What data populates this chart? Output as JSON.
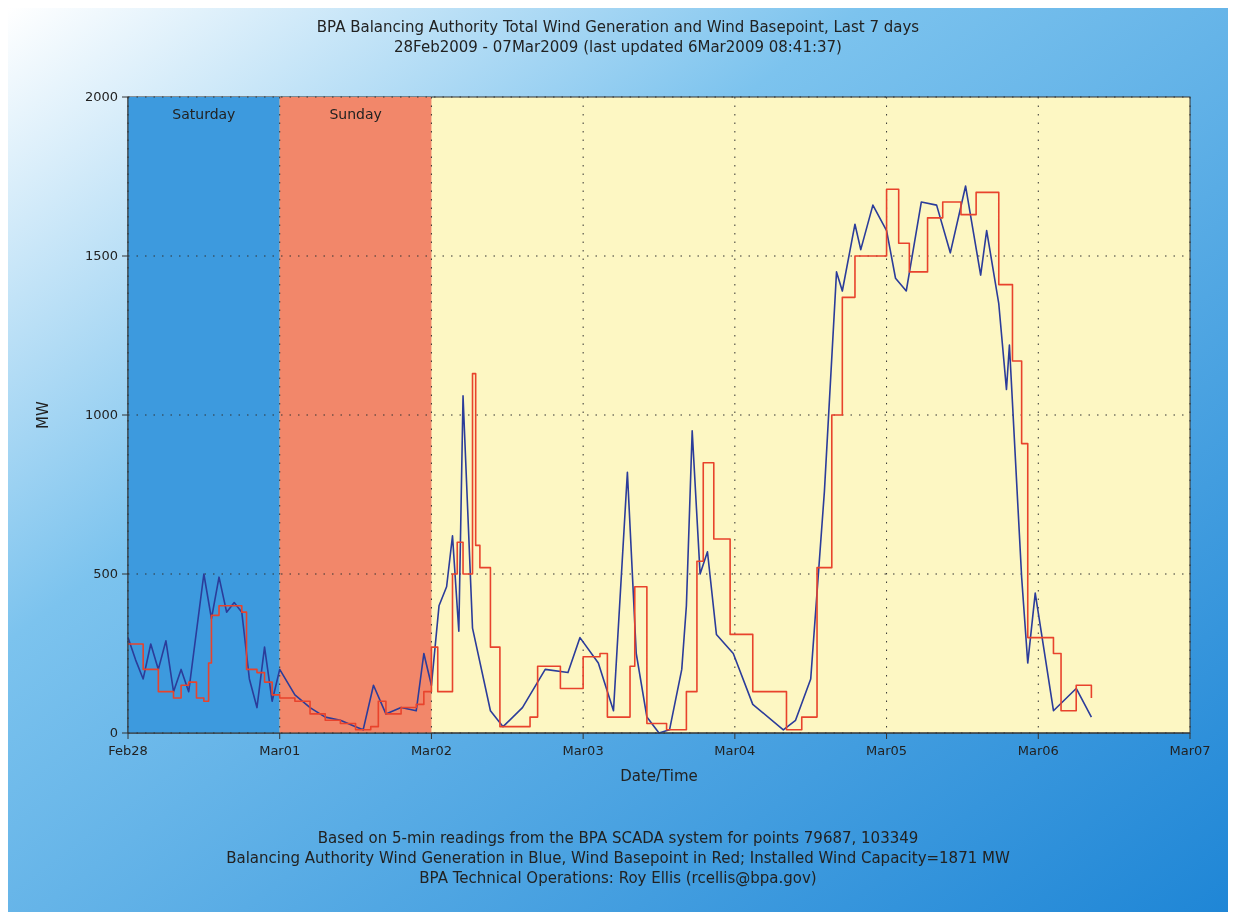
{
  "chart_data": {
    "type": "line",
    "title": "BPA Balancing Authority Total Wind Generation and Wind Basepoint, Last 7 days",
    "subtitle": "28Feb2009 - 07Mar2009 (last updated 6Mar2009 08:41:37)",
    "xlabel": "Date/Time",
    "ylabel": "MW",
    "xlim": [
      "2009-02-28",
      "2009-03-07"
    ],
    "xticks": [
      {
        "value": "2009-02-28",
        "label": "Feb28"
      },
      {
        "value": "2009-03-01",
        "label": "Mar01"
      },
      {
        "value": "2009-03-02",
        "label": "Mar02"
      },
      {
        "value": "2009-03-03",
        "label": "Mar03"
      },
      {
        "value": "2009-03-04",
        "label": "Mar04"
      },
      {
        "value": "2009-03-05",
        "label": "Mar05"
      },
      {
        "value": "2009-03-06",
        "label": "Mar06"
      },
      {
        "value": "2009-03-07",
        "label": "Mar07"
      }
    ],
    "ylim": [
      0,
      2000
    ],
    "yticks": [
      0,
      500,
      1000,
      1500,
      2000
    ],
    "grid": true,
    "line_style": "solid",
    "bands": [
      {
        "axis": "x",
        "from": "2009-02-28",
        "to": "2009-03-01",
        "label": "Saturday",
        "color": "#3d9ade"
      },
      {
        "axis": "x",
        "from": "2009-03-01",
        "to": "2009-03-02",
        "label": "Sunday",
        "color": "#f2876a"
      }
    ],
    "series": [
      {
        "type": "line",
        "color": "#2b3c9a",
        "x": [
          "2009-02-28T00:00",
          "2009-02-28T01:12",
          "2009-02-28T02:24",
          "2009-02-28T03:36",
          "2009-02-28T04:48",
          "2009-02-28T06:00",
          "2009-02-28T07:12",
          "2009-02-28T08:24",
          "2009-02-28T09:36",
          "2009-02-28T12:00",
          "2009-02-28T13:12",
          "2009-02-28T14:24",
          "2009-02-28T15:36",
          "2009-02-28T16:48",
          "2009-02-28T18:00",
          "2009-02-28T19:12",
          "2009-02-28T20:24",
          "2009-02-28T21:36",
          "2009-02-28T22:48",
          "2009-03-01T00:00",
          "2009-03-01T02:24",
          "2009-03-01T04:48",
          "2009-03-01T07:12",
          "2009-03-01T09:36",
          "2009-03-01T12:00",
          "2009-03-01T13:12",
          "2009-03-01T14:50",
          "2009-03-01T16:48",
          "2009-03-01T19:12",
          "2009-03-01T21:36",
          "2009-03-01T22:48",
          "2009-03-02T00:00",
          "2009-03-02T01:12",
          "2009-03-02T02:24",
          "2009-03-02T03:20",
          "2009-03-02T04:20",
          "2009-03-02T05:00",
          "2009-03-02T06:30",
          "2009-03-02T09:20",
          "2009-03-02T11:20",
          "2009-03-02T14:24",
          "2009-03-02T18:00",
          "2009-03-02T21:36",
          "2009-03-02T23:30",
          "2009-03-03T02:24",
          "2009-03-03T04:48",
          "2009-03-03T07:00",
          "2009-03-03T08:24",
          "2009-03-03T10:05",
          "2009-03-03T12:00",
          "2009-03-03T13:40",
          "2009-03-03T15:36",
          "2009-03-03T16:20",
          "2009-03-03T17:15",
          "2009-03-03T18:30",
          "2009-03-03T19:40",
          "2009-03-03T21:05",
          "2009-03-03T23:45",
          "2009-03-04T02:50",
          "2009-03-04T07:40",
          "2009-03-04T09:36",
          "2009-03-04T12:00",
          "2009-03-04T14:10",
          "2009-03-04T16:05",
          "2009-03-04T17:00",
          "2009-03-04T19:00",
          "2009-03-04T19:55",
          "2009-03-04T21:50",
          "2009-03-05T00:00",
          "2009-03-05T01:25",
          "2009-03-05T03:07",
          "2009-03-05T05:30",
          "2009-03-05T07:55",
          "2009-03-05T10:05",
          "2009-03-05T12:30",
          "2009-03-05T14:53",
          "2009-03-05T15:50",
          "2009-03-05T17:45",
          "2009-03-05T18:58",
          "2009-03-05T19:26",
          "2009-03-05T21:22",
          "2009-03-05T22:20",
          "2009-03-05T23:31",
          "2009-03-06T02:24",
          "2009-03-06T06:00",
          "2009-03-06T08:24"
        ],
        "values": [
          300,
          230,
          170,
          280,
          200,
          290,
          130,
          200,
          130,
          500,
          360,
          490,
          380,
          410,
          380,
          170,
          80,
          270,
          100,
          200,
          120,
          80,
          50,
          40,
          20,
          10,
          150,
          60,
          80,
          70,
          250,
          150,
          400,
          460,
          620,
          320,
          1060,
          330,
          70,
          20,
          80,
          200,
          190,
          300,
          220,
          70,
          820,
          250,
          50,
          0,
          10,
          200,
          400,
          950,
          500,
          570,
          310,
          250,
          90,
          10,
          40,
          170,
          760,
          1450,
          1390,
          1600,
          1520,
          1660,
          1580,
          1430,
          1390,
          1670,
          1660,
          1510,
          1720,
          1440,
          1580,
          1350,
          1080,
          1220,
          490,
          220,
          440,
          70,
          140,
          50
        ]
      },
      {
        "type": "step",
        "color": "#e8432c",
        "x": [
          "2009-02-28T00:00",
          "2009-02-28T02:24",
          "2009-02-28T04:48",
          "2009-02-28T07:12",
          "2009-02-28T08:24",
          "2009-02-28T09:36",
          "2009-02-28T10:50",
          "2009-02-28T12:00",
          "2009-02-28T12:45",
          "2009-02-28T13:12",
          "2009-02-28T14:24",
          "2009-02-28T16:48",
          "2009-02-28T18:00",
          "2009-02-28T18:45",
          "2009-02-28T20:24",
          "2009-02-28T21:36",
          "2009-02-28T22:48",
          "2009-03-01T00:00",
          "2009-03-01T02:24",
          "2009-03-01T04:48",
          "2009-03-01T07:12",
          "2009-03-01T09:36",
          "2009-03-01T12:00",
          "2009-03-01T14:24",
          "2009-03-01T15:36",
          "2009-03-01T16:48",
          "2009-03-01T19:12",
          "2009-03-01T21:36",
          "2009-03-01T22:48",
          "2009-03-02T00:00",
          "2009-03-02T01:00",
          "2009-03-02T03:20",
          "2009-03-02T04:05",
          "2009-03-02T05:00",
          "2009-03-02T06:30",
          "2009-03-02T07:00",
          "2009-03-02T07:40",
          "2009-03-02T09:20",
          "2009-03-02T10:50",
          "2009-03-02T15:36",
          "2009-03-02T16:48",
          "2009-03-02T20:24",
          "2009-03-03T00:00",
          "2009-03-03T02:40",
          "2009-03-03T03:50",
          "2009-03-03T07:25",
          "2009-03-03T08:10",
          "2009-03-03T10:05",
          "2009-03-03T13:12",
          "2009-03-03T16:20",
          "2009-03-03T18:00",
          "2009-03-03T19:00",
          "2009-03-03T20:40",
          "2009-03-03T23:15",
          "2009-03-04T02:50",
          "2009-03-04T08:10",
          "2009-03-04T10:35",
          "2009-03-04T13:00",
          "2009-03-04T15:20",
          "2009-03-04T17:00",
          "2009-03-04T19:00",
          "2009-03-05T00:00",
          "2009-03-05T01:55",
          "2009-03-05T03:36",
          "2009-03-05T06:29",
          "2009-03-05T08:53",
          "2009-03-05T11:46",
          "2009-03-05T14:10",
          "2009-03-05T17:45",
          "2009-03-05T19:55",
          "2009-03-05T21:22",
          "2009-03-05T22:20",
          "2009-03-06T02:24",
          "2009-03-06T03:36",
          "2009-03-06T06:00",
          "2009-03-06T08:24"
        ],
        "values": [
          280,
          200,
          130,
          110,
          150,
          160,
          110,
          100,
          220,
          370,
          400,
          400,
          380,
          200,
          190,
          160,
          120,
          110,
          100,
          60,
          40,
          30,
          10,
          20,
          100,
          60,
          80,
          90,
          130,
          270,
          130,
          500,
          600,
          500,
          1130,
          590,
          520,
          270,
          20,
          50,
          210,
          140,
          240,
          250,
          50,
          210,
          460,
          30,
          10,
          130,
          540,
          850,
          610,
          310,
          130,
          10,
          50,
          520,
          1000,
          1370,
          1500,
          1710,
          1540,
          1450,
          1620,
          1670,
          1630,
          1700,
          1410,
          1170,
          910,
          300,
          250,
          70,
          150,
          110
        ]
      }
    ],
    "annotations": [
      "Based on 5-min readings from the BPA SCADA system for points 79687, 103349",
      "Balancing Authority Wind Generation in Blue, Wind Basepoint in Red; Installed Wind Capacity=1871 MW",
      "BPA Technical Operations: Roy Ellis (rcellis@bpa.gov)"
    ]
  }
}
